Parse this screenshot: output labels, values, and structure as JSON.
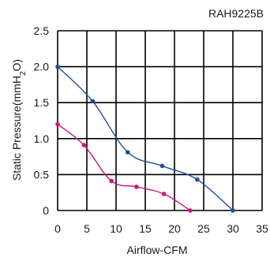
{
  "chart_data": {
    "type": "line",
    "model_label": "RAH9225B",
    "xlabel": "Airflow-CFM",
    "ylabel_main": "Static Pressure(mmH",
    "ylabel_sub": "2",
    "ylabel_end": "O)",
    "xlim": [
      0,
      30
    ],
    "ylim": [
      0,
      2.5
    ],
    "x_ticks": [
      "0",
      "5",
      "10",
      "15",
      "20",
      "25",
      "30",
      "35"
    ],
    "y_ticks": [
      "0",
      "0.5",
      "1.0",
      "1.5",
      "2.0",
      "2.5"
    ],
    "grid": true,
    "series": [
      {
        "color": "#1f4e9c",
        "points": [
          {
            "x": 0,
            "y": 2.0
          },
          {
            "x": 6,
            "y": 1.52
          },
          {
            "x": 12,
            "y": 0.81
          },
          {
            "x": 17.9,
            "y": 0.62
          },
          {
            "x": 23.9,
            "y": 0.43
          },
          {
            "x": 30,
            "y": 0.0
          }
        ]
      },
      {
        "color": "#d0157a",
        "points": [
          {
            "x": 0,
            "y": 1.2
          },
          {
            "x": 4.5,
            "y": 0.91
          },
          {
            "x": 9.2,
            "y": 0.41
          },
          {
            "x": 13.5,
            "y": 0.33
          },
          {
            "x": 18.2,
            "y": 0.23
          },
          {
            "x": 22.7,
            "y": 0.0
          }
        ]
      }
    ]
  }
}
